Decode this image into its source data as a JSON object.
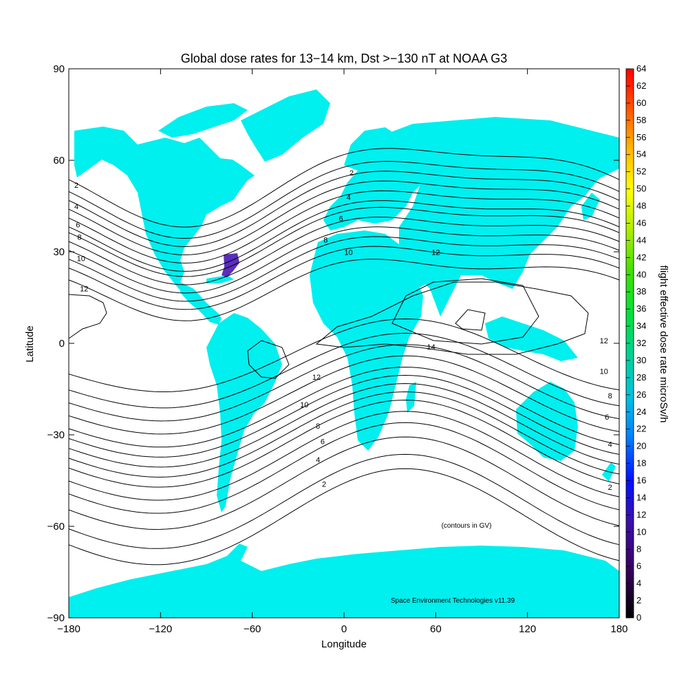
{
  "title": "Global dose rates for 13−14 km, Dst >−130 nT at NOAA G3",
  "x_axis": {
    "label": "Longitude",
    "range": [
      -180,
      180
    ],
    "ticks": [
      "−180",
      "−120",
      "−60",
      "0",
      "60",
      "120",
      "180"
    ],
    "tick_values": [
      -180,
      -120,
      -60,
      0,
      60,
      120,
      180
    ]
  },
  "y_axis": {
    "label": "Latitude",
    "range": [
      -90,
      90
    ],
    "ticks": [
      "−90",
      "−60",
      "−30",
      "0",
      "30",
      "60",
      "90"
    ],
    "tick_values": [
      -90,
      -60,
      -30,
      0,
      30,
      60,
      90
    ]
  },
  "colorbar": {
    "label": "flight effective dose rate microSv/h",
    "range": [
      0,
      64
    ],
    "ticks": [
      "0",
      "2",
      "4",
      "6",
      "8",
      "10",
      "12",
      "14",
      "16",
      "18",
      "20",
      "22",
      "24",
      "26",
      "28",
      "30",
      "32",
      "34",
      "36",
      "38",
      "40",
      "42",
      "44",
      "46",
      "48",
      "50",
      "52",
      "54",
      "56",
      "58",
      "60",
      "62",
      "64"
    ],
    "tick_values": [
      0,
      2,
      4,
      6,
      8,
      10,
      12,
      14,
      16,
      18,
      20,
      22,
      24,
      26,
      28,
      30,
      32,
      34,
      36,
      38,
      40,
      42,
      44,
      46,
      48,
      50,
      52,
      54,
      56,
      58,
      60,
      62,
      64
    ]
  },
  "colors": {
    "land": "#00efef",
    "ocean": "#ffffff",
    "contour": "#000000",
    "dose_patch": "#5b2dbf"
  },
  "contour_note": "(contours in GV)",
  "credit": "Space Environment Technologies v11.39",
  "contour_labels": [
    {
      "text": "2",
      "lon": -175,
      "lat": 51
    },
    {
      "text": "4",
      "lon": -175,
      "lat": 44
    },
    {
      "text": "6",
      "lon": -174,
      "lat": 38
    },
    {
      "text": "8",
      "lon": -173,
      "lat": 34
    },
    {
      "text": "10",
      "lon": -172,
      "lat": 27
    },
    {
      "text": "12",
      "lon": -170,
      "lat": 17
    },
    {
      "text": "2",
      "lon": 5,
      "lat": 55
    },
    {
      "text": "4",
      "lon": 3,
      "lat": 47
    },
    {
      "text": "6",
      "lon": -2,
      "lat": 40
    },
    {
      "text": "8",
      "lon": -12,
      "lat": 33
    },
    {
      "text": "10",
      "lon": 3,
      "lat": 29
    },
    {
      "text": "12",
      "lon": 60,
      "lat": 29
    },
    {
      "text": "14",
      "lon": 57,
      "lat": -2
    },
    {
      "text": "12",
      "lon": -18,
      "lat": -12
    },
    {
      "text": "10",
      "lon": -26,
      "lat": -21
    },
    {
      "text": "8",
      "lon": -17,
      "lat": -28
    },
    {
      "text": "6",
      "lon": -14,
      "lat": -33
    },
    {
      "text": "4",
      "lon": -17,
      "lat": -39
    },
    {
      "text": "2",
      "lon": -13,
      "lat": -47
    },
    {
      "text": "12",
      "lon": 170,
      "lat": 0
    },
    {
      "text": "10",
      "lon": 170,
      "lat": -10
    },
    {
      "text": "8",
      "lon": 174,
      "lat": -18
    },
    {
      "text": "6",
      "lon": 172,
      "lat": -25
    },
    {
      "text": "4",
      "lon": 174,
      "lat": -34
    },
    {
      "text": "2",
      "lon": 174,
      "lat": -48
    }
  ]
}
